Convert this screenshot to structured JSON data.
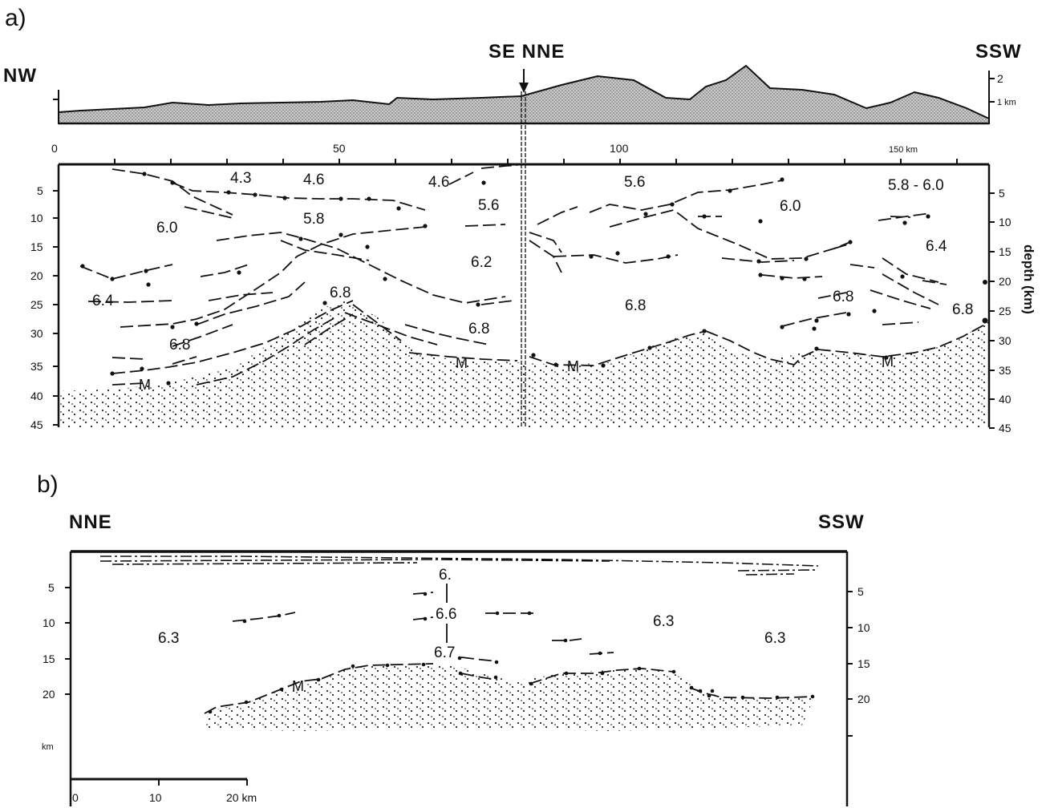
{
  "panel_a": {
    "tag": "a)",
    "dir_left": "NW",
    "dir_center": "SE NNE",
    "dir_right": "SSW",
    "topo_ticks": [
      "2",
      "1 km"
    ],
    "x_ticks": [
      "0",
      "50",
      "100",
      "150 km"
    ],
    "depth_left": [
      "5",
      "10",
      "15",
      "20",
      "25",
      "30",
      "35",
      "40",
      "45"
    ],
    "depth_right": [
      "5",
      "10",
      "15",
      "20",
      "25",
      "30",
      "35",
      "40",
      "45"
    ],
    "depth_axis_label": "depth (km)",
    "velocities": [
      "4.3",
      "4.6",
      "4.6",
      "5.6",
      "5.6",
      "5.8 - 6.0",
      "6.0",
      "5.8",
      "6.0",
      "6.4",
      "6.2",
      "6.4",
      "6.8",
      "6.8",
      "6.8",
      "6.8",
      "6.8",
      "6.8"
    ],
    "moho": [
      "M",
      "M",
      "M",
      "M"
    ]
  },
  "panel_b": {
    "tag": "b)",
    "dir_left": "NNE",
    "dir_right": "SSW",
    "depth_left": [
      "5",
      "10",
      "15",
      "20"
    ],
    "depth_right": [
      "5",
      "10",
      "15",
      "20"
    ],
    "depth_unit": "km",
    "scale_ticks": [
      "0",
      "10",
      "20 km"
    ],
    "velocities": [
      "6.",
      "6.6",
      "6.7",
      "6.3",
      "6.3",
      "6.3"
    ],
    "moho": [
      "M"
    ]
  }
}
